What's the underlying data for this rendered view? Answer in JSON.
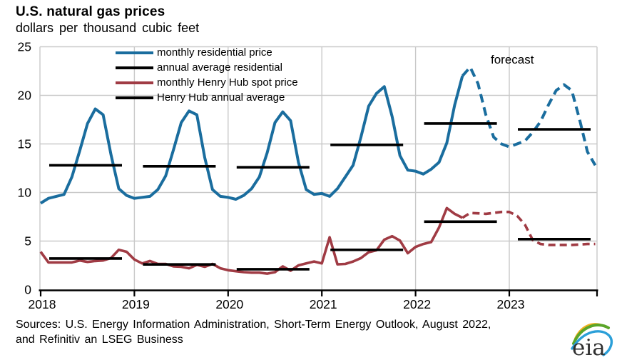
{
  "header": {
    "title": "U.S. natural gas prices",
    "subtitle": "dollars per thousand cubic feet"
  },
  "forecast_label": "forecast",
  "footer": {
    "sources_line1": "Sources: U.S. Energy Information Administration, Short-Term Energy Outlook, August 2022,",
    "sources_line2": "and Refinitiv an LSEG Business",
    "logo_text": "eia"
  },
  "colors": {
    "residential_blue": "#1a6d9e",
    "henry_hub_red": "#a03b44",
    "annual_average_black": "#000000",
    "grid_gray": "#c9c9c9",
    "logo_yellow": "#f2b01e",
    "logo_green": "#5ba529",
    "logo_blue": "#2b9fd8"
  },
  "chart_data": {
    "type": "line",
    "title": "U.S. natural gas prices",
    "ylabel": "dollars per thousand cubic feet",
    "xlabel": "",
    "ylim": [
      0,
      25
    ],
    "yticks": [
      0,
      5,
      10,
      15,
      20,
      25
    ],
    "xticks": [
      2018,
      2019,
      2020,
      2021,
      2022,
      2023
    ],
    "grid": true,
    "legend_position": "top-left-inside",
    "forecast_start": "2022-08",
    "legend": [
      {
        "label": "monthly residential price",
        "color": "#1a6d9e",
        "style": "solid"
      },
      {
        "label": "annual average residential",
        "color": "#000000",
        "style": "solid"
      },
      {
        "label": "monthly Henry Hub spot price",
        "color": "#a03b44",
        "style": "solid"
      },
      {
        "label": "Henry Hub annual average",
        "color": "#000000",
        "style": "solid"
      }
    ],
    "series": [
      {
        "name": "monthly residential price",
        "color": "#1a6d9e",
        "monthly": {
          "2018": [
            8.9,
            9.4,
            9.6,
            9.8,
            11.6,
            14.3,
            17.1,
            18.6,
            18.0,
            13.9,
            10.4,
            9.7
          ],
          "2019": [
            9.4,
            9.5,
            9.6,
            10.3,
            11.7,
            14.4,
            17.2,
            18.4,
            18.0,
            13.6,
            10.3,
            9.6
          ],
          "2020": [
            9.5,
            9.3,
            9.7,
            10.4,
            11.6,
            14.1,
            17.2,
            18.3,
            17.4,
            13.1,
            10.3,
            9.8
          ],
          "2021": [
            9.9,
            9.6,
            10.4,
            11.6,
            12.8,
            15.7,
            18.9,
            20.2,
            20.9,
            17.8,
            13.8,
            12.3
          ],
          "2022": [
            12.2,
            11.9,
            12.4,
            13.1,
            15.1,
            19.0,
            22.0,
            22.9,
            21.2,
            18.0,
            15.7,
            15.0
          ],
          "2023": [
            14.7,
            15.0,
            15.3,
            16.2,
            17.3,
            19.0,
            20.5,
            21.1,
            20.5,
            17.5,
            14.2,
            12.8
          ]
        }
      },
      {
        "name": "monthly Henry Hub spot price",
        "color": "#a03b44",
        "monthly": {
          "2018": [
            3.9,
            2.8,
            2.8,
            2.8,
            2.8,
            3.0,
            2.85,
            2.95,
            3.0,
            3.25,
            4.1,
            3.9
          ],
          "2019": [
            3.1,
            2.7,
            2.95,
            2.65,
            2.65,
            2.4,
            2.35,
            2.2,
            2.55,
            2.35,
            2.65,
            2.2
          ],
          "2020": [
            2.0,
            1.9,
            1.8,
            1.75,
            1.75,
            1.65,
            1.8,
            2.4,
            1.95,
            2.5,
            2.7,
            2.9
          ],
          "2021": [
            2.7,
            5.4,
            2.6,
            2.65,
            2.9,
            3.25,
            3.85,
            4.05,
            5.15,
            5.5,
            5.05,
            3.75
          ],
          "2022": [
            4.4,
            4.7,
            4.9,
            6.4,
            8.4,
            7.8,
            7.4,
            7.9,
            7.85,
            7.8,
            7.9,
            8.0
          ],
          "2023": [
            8.0,
            7.6,
            6.7,
            5.1,
            4.7,
            4.6,
            4.6,
            4.6,
            4.6,
            4.65,
            4.7,
            4.7
          ]
        }
      }
    ],
    "annual_averages": {
      "residential": {
        "2018": 12.8,
        "2019": 12.7,
        "2020": 12.6,
        "2021": 14.9,
        "2022": 17.1,
        "2023": 16.5
      },
      "henry_hub": {
        "2018": 3.2,
        "2019": 2.6,
        "2020": 2.1,
        "2021": 4.1,
        "2022": 7.0,
        "2023": 5.2
      }
    }
  }
}
